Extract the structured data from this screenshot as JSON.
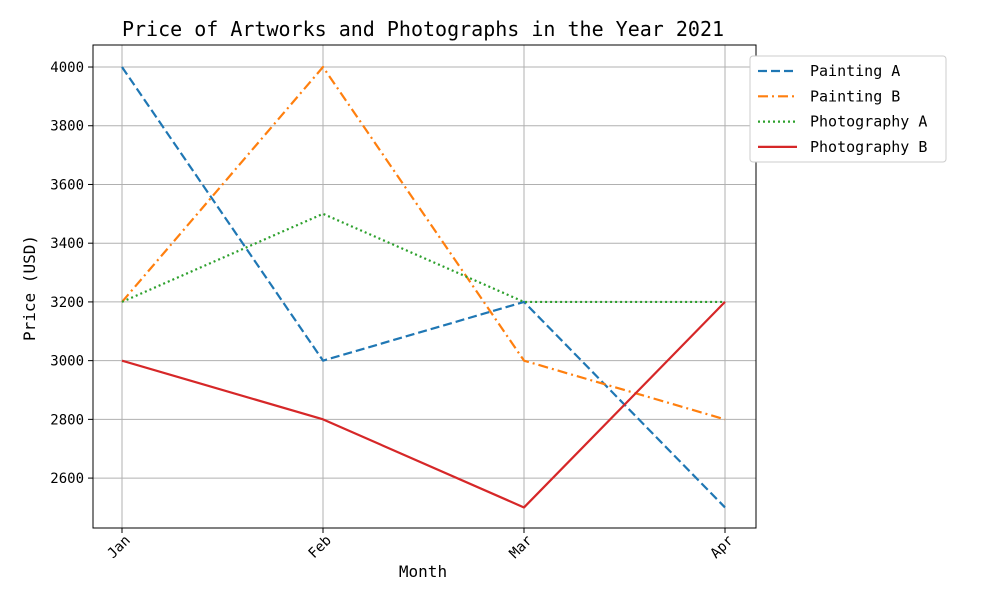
{
  "chart_data": {
    "type": "line",
    "title": "Price of Artworks and Photographs in the Year 2021",
    "xlabel": "Month",
    "ylabel": "Price (USD)",
    "categories": [
      "Jan",
      "Feb",
      "Mar",
      "Apr"
    ],
    "ylim": [
      2430,
      4075
    ],
    "yticks": [
      2600,
      2800,
      3000,
      3200,
      3400,
      3600,
      3800,
      4000
    ],
    "grid": true,
    "legend_position": "top-right",
    "series": [
      {
        "name": "Painting A",
        "values": [
          4000,
          3000,
          3200,
          2500
        ],
        "color": "#1f77b4",
        "style": "dashed"
      },
      {
        "name": "Painting B",
        "values": [
          3200,
          4000,
          3000,
          2800
        ],
        "color": "#ff7f0e",
        "style": "dashdot"
      },
      {
        "name": "Photography A",
        "values": [
          3200,
          3500,
          3200,
          3200
        ],
        "color": "#2ca02c",
        "style": "dotted"
      },
      {
        "name": "Photography B",
        "values": [
          3000,
          2800,
          2500,
          3200
        ],
        "color": "#d62728",
        "style": "solid"
      }
    ]
  }
}
